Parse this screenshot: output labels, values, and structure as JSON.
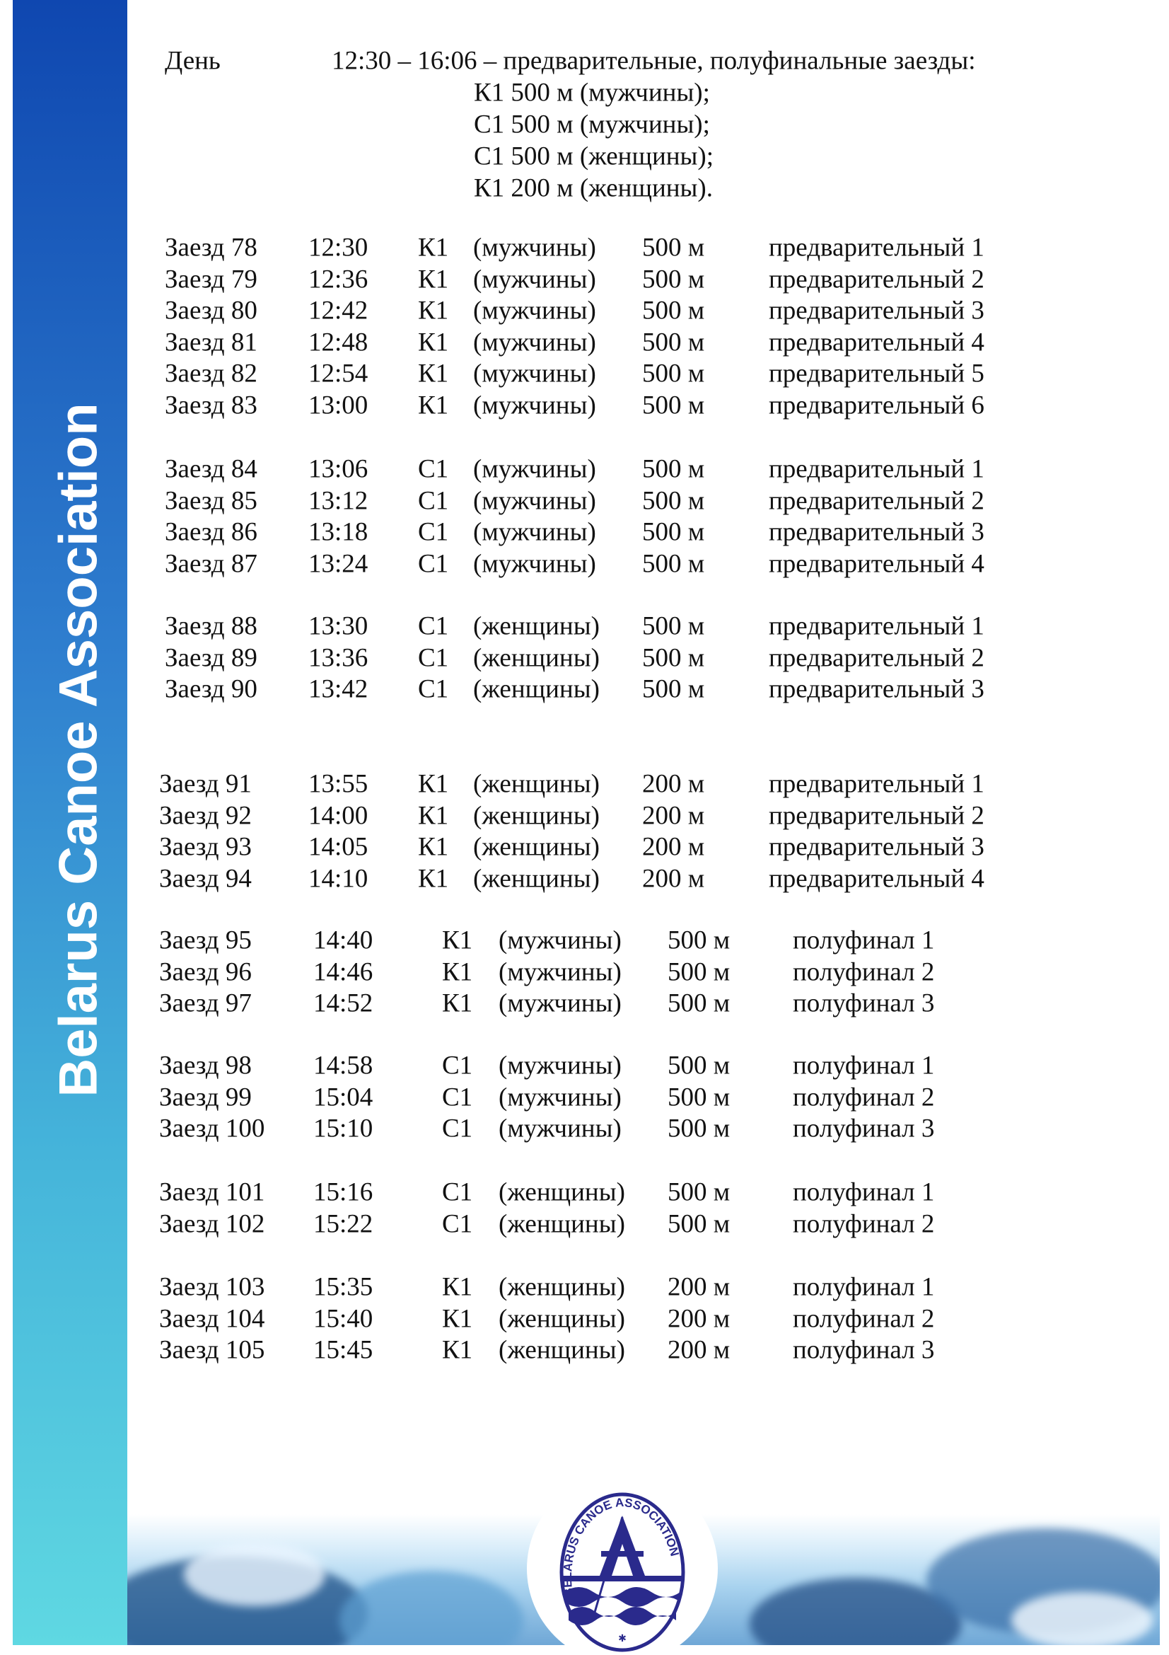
{
  "sidebar": {
    "title": "Belarus Canoe Association"
  },
  "header": {
    "day_label": "День",
    "summary": "12:30 – 16:06 – предварительные, полуфинальные заезды:",
    "events": [
      "К1 500 м (мужчины);",
      "С1 500 м (мужчины);",
      "С1 500 м (женщины);",
      "К1 200 м (женщины)."
    ]
  },
  "groups": [
    {
      "rows": [
        {
          "heat": "Заезд 78",
          "time": "12:30",
          "boat": "К1",
          "gender": "(мужчины)",
          "distance": "500 м",
          "stage": "предварительный 1"
        },
        {
          "heat": "Заезд 79",
          "time": "12:36",
          "boat": "К1",
          "gender": "(мужчины)",
          "distance": "500 м",
          "stage": "предварительный 2"
        },
        {
          "heat": "Заезд 80",
          "time": "12:42",
          "boat": "К1",
          "gender": "(мужчины)",
          "distance": "500 м",
          "stage": "предварительный 3"
        },
        {
          "heat": "Заезд 81",
          "time": "12:48",
          "boat": "К1",
          "gender": "(мужчины)",
          "distance": "500 м",
          "stage": "предварительный 4"
        },
        {
          "heat": "Заезд 82",
          "time": "12:54",
          "boat": "К1",
          "gender": "(мужчины)",
          "distance": "500 м",
          "stage": "предварительный 5"
        },
        {
          "heat": "Заезд 83",
          "time": "13:00",
          "boat": "К1",
          "gender": "(мужчины)",
          "distance": "500 м",
          "stage": "предварительный 6"
        }
      ]
    },
    {
      "rows": [
        {
          "heat": "Заезд 84",
          "time": "13:06",
          "boat": "С1",
          "gender": "(мужчины)",
          "distance": "500 м",
          "stage": "предварительный 1"
        },
        {
          "heat": "Заезд 85",
          "time": "13:12",
          "boat": "С1",
          "gender": "(мужчины)",
          "distance": "500 м",
          "stage": "предварительный 2"
        },
        {
          "heat": "Заезд 86",
          "time": "13:18",
          "boat": "С1",
          "gender": "(мужчины)",
          "distance": "500 м",
          "stage": "предварительный 3"
        },
        {
          "heat": "Заезд 87",
          "time": "13:24",
          "boat": "С1",
          "gender": "(мужчины)",
          "distance": "500 м",
          "stage": "предварительный 4"
        }
      ]
    },
    {
      "rows": [
        {
          "heat": "Заезд 88",
          "time": "13:30",
          "boat": "С1",
          "gender": "(женщины)",
          "distance": "500 м",
          "stage": "предварительный 1"
        },
        {
          "heat": "Заезд 89",
          "time": "13:36",
          "boat": "С1",
          "gender": "(женщины)",
          "distance": "500 м",
          "stage": "предварительный 2"
        },
        {
          "heat": "Заезд 90",
          "time": "13:42",
          "boat": "С1",
          "gender": "(женщины)",
          "distance": "500 м",
          "stage": "предварительный 3"
        }
      ]
    },
    {
      "rows": [
        {
          "heat": "Заезд 91",
          "time": "13:55",
          "boat": "К1",
          "gender": "(женщины)",
          "distance": "200 м",
          "stage": "предварительный 1"
        },
        {
          "heat": "Заезд 92",
          "time": "14:00",
          "boat": "К1",
          "gender": "(женщины)",
          "distance": "200 м",
          "stage": "предварительный 2"
        },
        {
          "heat": "Заезд 93",
          "time": "14:05",
          "boat": "К1",
          "gender": "(женщины)",
          "distance": "200 м",
          "stage": "предварительный 3"
        },
        {
          "heat": "Заезд 94",
          "time": "14:10",
          "boat": "К1",
          "gender": "(женщины)",
          "distance": "200 м",
          "stage": "предварительный 4"
        }
      ]
    },
    {
      "rows": [
        {
          "heat": "Заезд 95",
          "time": "14:40",
          "boat": "К1",
          "gender": "(мужчины)",
          "distance": "500 м",
          "stage": "полуфинал 1"
        },
        {
          "heat": "Заезд 96",
          "time": "14:46",
          "boat": "К1",
          "gender": "(мужчины)",
          "distance": "500 м",
          "stage": "полуфинал 2"
        },
        {
          "heat": "Заезд 97",
          "time": "14:52",
          "boat": "К1",
          "gender": "(мужчины)",
          "distance": "500 м",
          "stage": "полуфинал 3"
        }
      ]
    },
    {
      "rows": [
        {
          "heat": "Заезд 98",
          "time": "14:58",
          "boat": "С1",
          "gender": "(мужчины)",
          "distance": "500 м",
          "stage": "полуфинал 1"
        },
        {
          "heat": "Заезд 99",
          "time": "15:04",
          "boat": "С1",
          "gender": "(мужчины)",
          "distance": "500 м",
          "stage": "полуфинал 2"
        },
        {
          "heat": "Заезд 100",
          "time": "15:10",
          "boat": "С1",
          "gender": "(мужчины)",
          "distance": "500 м",
          "stage": "полуфинал 3"
        }
      ]
    },
    {
      "rows": [
        {
          "heat": "Заезд 101",
          "time": "15:16",
          "boat": "С1",
          "gender": "(женщины)",
          "distance": "500 м",
          "stage": "полуфинал 1"
        },
        {
          "heat": "Заезд 102",
          "time": "15:22",
          "boat": "С1",
          "gender": "(женщины)",
          "distance": "500 м",
          "stage": "полуфинал 2"
        }
      ]
    },
    {
      "rows": [
        {
          "heat": "Заезд 103",
          "time": "15:35",
          "boat": "К1",
          "gender": "(женщины)",
          "distance": "200 м",
          "stage": "полуфинал 1"
        },
        {
          "heat": "Заезд 104",
          "time": "15:40",
          "boat": "К1",
          "gender": "(женщины)",
          "distance": "200 м",
          "stage": "полуфинал 2"
        },
        {
          "heat": "Заезд 105",
          "time": "15:45",
          "boat": "К1",
          "gender": "(женщины)",
          "distance": "200 м",
          "stage": "полуфинал 3"
        }
      ]
    }
  ],
  "logo": {
    "text": "BELARUS CANOE ASSOCIATION"
  },
  "colors": {
    "sidebar_top": "#0f47b0",
    "sidebar_bottom": "#5fd8e2",
    "logo": "#2a2a8c"
  }
}
